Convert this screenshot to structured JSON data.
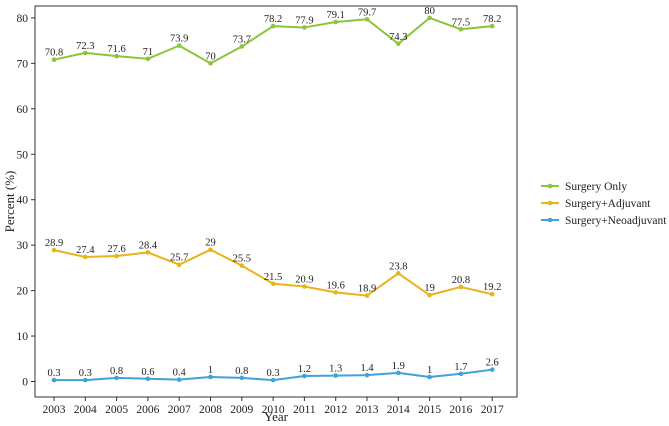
{
  "chart_data": {
    "type": "line",
    "title": "",
    "xlabel": "Year",
    "ylabel": "Percent (%)",
    "x": [
      "2003",
      "2004",
      "2005",
      "2006",
      "2007",
      "2008",
      "2009",
      "2010",
      "2011",
      "2012",
      "2013",
      "2014",
      "2015",
      "2016",
      "2017"
    ],
    "xlim": [
      2003,
      2017
    ],
    "ylim": [
      0,
      80
    ],
    "yticks": [
      0,
      10,
      20,
      30,
      40,
      50,
      60,
      70,
      80
    ],
    "grid": false,
    "legend_position": "right",
    "series": [
      {
        "name": "Surgery Only",
        "color": "#8cc43b",
        "values": [
          70.8,
          72.3,
          71.6,
          71,
          73.9,
          70,
          73.7,
          78.2,
          77.9,
          79.1,
          79.7,
          74.3,
          80,
          77.5,
          78.2
        ]
      },
      {
        "name": "Surgery+Adjuvant",
        "color": "#e8b419",
        "values": [
          28.9,
          27.4,
          27.6,
          28.4,
          25.7,
          29,
          25.5,
          21.5,
          20.9,
          19.6,
          18.9,
          23.8,
          19,
          20.8,
          19.2
        ]
      },
      {
        "name": "Surgery+Neoadjuvant",
        "color": "#3fa3d9",
        "values": [
          0.3,
          0.3,
          0.8,
          0.6,
          0.4,
          1,
          0.8,
          0.3,
          1.2,
          1.3,
          1.4,
          1.9,
          1,
          1.7,
          2.6
        ]
      }
    ]
  }
}
